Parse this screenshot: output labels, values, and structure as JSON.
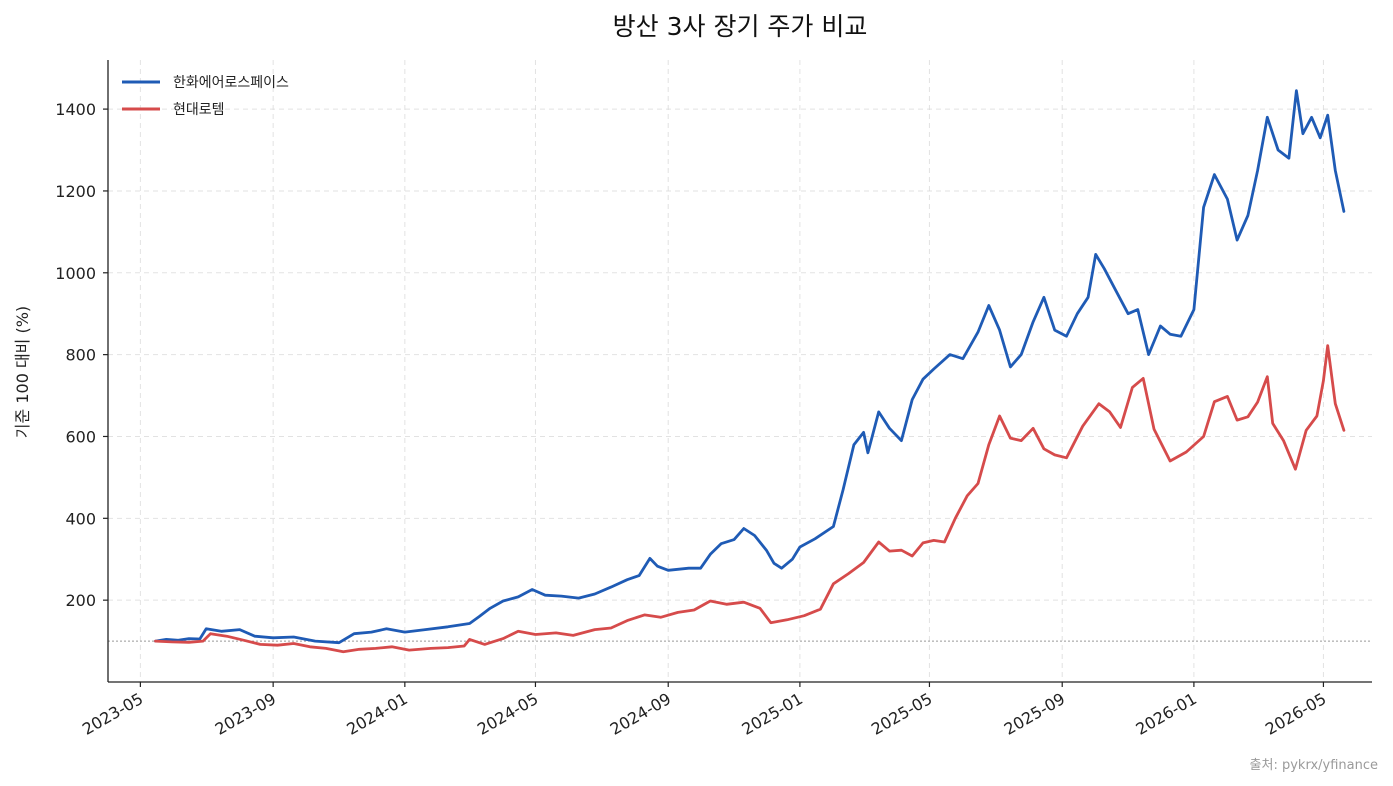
{
  "chart_data": {
    "type": "line",
    "title": "방산 3사 장기 주가 비교",
    "xlabel": "",
    "ylabel": "기준 100 대비 (%)",
    "source": "출처: pykrx/yfinance",
    "ylim": [
      0,
      1520
    ],
    "xlim": [
      "2023-04-01",
      "2026-06-15"
    ],
    "yticks": [
      200,
      400,
      600,
      800,
      1000,
      1200,
      1400
    ],
    "ytick_labels": [
      "200",
      "400",
      "600",
      "800",
      "1000",
      "1200",
      "1400"
    ],
    "xticks": [
      "2023-05-01",
      "2023-09-01",
      "2024-01-01",
      "2024-05-01",
      "2024-09-01",
      "2025-01-01",
      "2025-05-01",
      "2025-09-01",
      "2026-01-01",
      "2026-05-01"
    ],
    "xtick_labels": [
      "2023-05",
      "2023-09",
      "2024-01",
      "2024-05",
      "2024-09",
      "2025-01",
      "2025-05",
      "2025-09",
      "2026-01",
      "2026-05"
    ],
    "baseline": 100,
    "grid": true,
    "legend_position": "top-left",
    "series": [
      {
        "name": "한화에어로스페이스",
        "color": "#1f5bb5",
        "points": [
          [
            "2023-05-15",
            100
          ],
          [
            "2023-05-25",
            104
          ],
          [
            "2023-06-05",
            102
          ],
          [
            "2023-06-15",
            106
          ],
          [
            "2023-06-25",
            105
          ],
          [
            "2023-07-01",
            130
          ],
          [
            "2023-07-15",
            124
          ],
          [
            "2023-08-01",
            128
          ],
          [
            "2023-08-15",
            112
          ],
          [
            "2023-09-01",
            108
          ],
          [
            "2023-09-20",
            110
          ],
          [
            "2023-10-10",
            100
          ],
          [
            "2023-11-01",
            96
          ],
          [
            "2023-11-15",
            118
          ],
          [
            "2023-12-01",
            122
          ],
          [
            "2023-12-15",
            130
          ],
          [
            "2024-01-01",
            122
          ],
          [
            "2024-01-20",
            128
          ],
          [
            "2024-02-10",
            135
          ],
          [
            "2024-03-01",
            143
          ],
          [
            "2024-03-10",
            160
          ],
          [
            "2024-03-20",
            180
          ],
          [
            "2024-04-01",
            198
          ],
          [
            "2024-04-15",
            208
          ],
          [
            "2024-04-28",
            226
          ],
          [
            "2024-05-10",
            212
          ],
          [
            "2024-05-25",
            210
          ],
          [
            "2024-06-10",
            205
          ],
          [
            "2024-06-25",
            215
          ],
          [
            "2024-07-10",
            232
          ],
          [
            "2024-07-25",
            250
          ],
          [
            "2024-08-05",
            260
          ],
          [
            "2024-08-15",
            302
          ],
          [
            "2024-08-22",
            283
          ],
          [
            "2024-09-01",
            273
          ],
          [
            "2024-09-20",
            278
          ],
          [
            "2024-10-01",
            278
          ],
          [
            "2024-10-10",
            312
          ],
          [
            "2024-10-20",
            338
          ],
          [
            "2024-11-01",
            348
          ],
          [
            "2024-11-10",
            375
          ],
          [
            "2024-11-20",
            358
          ],
          [
            "2024-12-01",
            322
          ],
          [
            "2024-12-08",
            290
          ],
          [
            "2024-12-15",
            278
          ],
          [
            "2024-12-25",
            300
          ],
          [
            "2025-01-01",
            330
          ],
          [
            "2025-01-15",
            350
          ],
          [
            "2025-02-01",
            380
          ],
          [
            "2025-02-10",
            470
          ],
          [
            "2025-02-20",
            580
          ],
          [
            "2025-03-01",
            610
          ],
          [
            "2025-03-05",
            560
          ],
          [
            "2025-03-15",
            660
          ],
          [
            "2025-03-25",
            620
          ],
          [
            "2025-04-05",
            590
          ],
          [
            "2025-04-15",
            690
          ],
          [
            "2025-04-25",
            740
          ],
          [
            "2025-05-05",
            765
          ],
          [
            "2025-05-20",
            800
          ],
          [
            "2025-06-01",
            790
          ],
          [
            "2025-06-15",
            855
          ],
          [
            "2025-06-25",
            920
          ],
          [
            "2025-07-05",
            860
          ],
          [
            "2025-07-15",
            770
          ],
          [
            "2025-07-25",
            800
          ],
          [
            "2025-08-05",
            880
          ],
          [
            "2025-08-15",
            940
          ],
          [
            "2025-08-25",
            860
          ],
          [
            "2025-09-05",
            845
          ],
          [
            "2025-09-15",
            900
          ],
          [
            "2025-09-25",
            940
          ],
          [
            "2025-10-02",
            1045
          ],
          [
            "2025-10-10",
            1010
          ],
          [
            "2025-10-20",
            960
          ],
          [
            "2025-11-01",
            900
          ],
          [
            "2025-11-10",
            910
          ],
          [
            "2025-11-20",
            800
          ],
          [
            "2025-12-01",
            870
          ],
          [
            "2025-12-10",
            850
          ],
          [
            "2025-12-20",
            845
          ],
          [
            "2026-01-01",
            910
          ],
          [
            "2026-01-10",
            1160
          ],
          [
            "2026-01-20",
            1240
          ],
          [
            "2026-02-01",
            1180
          ],
          [
            "2026-02-10",
            1080
          ],
          [
            "2026-02-20",
            1140
          ],
          [
            "2026-03-01",
            1250
          ],
          [
            "2026-03-10",
            1380
          ],
          [
            "2026-03-20",
            1300
          ],
          [
            "2026-03-30",
            1280
          ],
          [
            "2026-04-06",
            1445
          ],
          [
            "2026-04-12",
            1340
          ],
          [
            "2026-04-20",
            1380
          ],
          [
            "2026-04-28",
            1330
          ],
          [
            "2026-05-05",
            1385
          ],
          [
            "2026-05-12",
            1250
          ],
          [
            "2026-05-20",
            1150
          ]
        ]
      },
      {
        "name": "현대로템",
        "color": "#d64b4b",
        "points": [
          [
            "2023-05-15",
            100
          ],
          [
            "2023-05-30",
            98
          ],
          [
            "2023-06-15",
            97
          ],
          [
            "2023-06-28",
            100
          ],
          [
            "2023-07-05",
            118
          ],
          [
            "2023-07-20",
            112
          ],
          [
            "2023-08-05",
            102
          ],
          [
            "2023-08-20",
            92
          ],
          [
            "2023-09-05",
            90
          ],
          [
            "2023-09-20",
            94
          ],
          [
            "2023-10-05",
            86
          ],
          [
            "2023-10-20",
            82
          ],
          [
            "2023-11-05",
            74
          ],
          [
            "2023-11-20",
            80
          ],
          [
            "2023-12-05",
            82
          ],
          [
            "2023-12-20",
            86
          ],
          [
            "2024-01-05",
            78
          ],
          [
            "2024-01-25",
            82
          ],
          [
            "2024-02-10",
            84
          ],
          [
            "2024-02-25",
            88
          ],
          [
            "2024-03-01",
            104
          ],
          [
            "2024-03-15",
            92
          ],
          [
            "2024-04-01",
            106
          ],
          [
            "2024-04-15",
            124
          ],
          [
            "2024-05-01",
            116
          ],
          [
            "2024-05-20",
            120
          ],
          [
            "2024-06-05",
            114
          ],
          [
            "2024-06-25",
            128
          ],
          [
            "2024-07-10",
            132
          ],
          [
            "2024-07-25",
            150
          ],
          [
            "2024-08-10",
            164
          ],
          [
            "2024-08-25",
            158
          ],
          [
            "2024-09-10",
            170
          ],
          [
            "2024-09-25",
            176
          ],
          [
            "2024-10-10",
            198
          ],
          [
            "2024-10-25",
            190
          ],
          [
            "2024-11-10",
            195
          ],
          [
            "2024-11-25",
            180
          ],
          [
            "2024-12-05",
            145
          ],
          [
            "2024-12-20",
            152
          ],
          [
            "2025-01-05",
            162
          ],
          [
            "2025-01-20",
            178
          ],
          [
            "2025-02-01",
            240
          ],
          [
            "2025-02-15",
            265
          ],
          [
            "2025-03-01",
            292
          ],
          [
            "2025-03-15",
            342
          ],
          [
            "2025-03-25",
            320
          ],
          [
            "2025-04-05",
            322
          ],
          [
            "2025-04-15",
            308
          ],
          [
            "2025-04-25",
            340
          ],
          [
            "2025-05-05",
            346
          ],
          [
            "2025-05-15",
            342
          ],
          [
            "2025-05-25",
            400
          ],
          [
            "2025-06-05",
            455
          ],
          [
            "2025-06-15",
            485
          ],
          [
            "2025-06-25",
            580
          ],
          [
            "2025-07-05",
            650
          ],
          [
            "2025-07-15",
            596
          ],
          [
            "2025-07-25",
            590
          ],
          [
            "2025-08-05",
            620
          ],
          [
            "2025-08-15",
            570
          ],
          [
            "2025-08-25",
            555
          ],
          [
            "2025-09-05",
            548
          ],
          [
            "2025-09-20",
            625
          ],
          [
            "2025-10-05",
            680
          ],
          [
            "2025-10-15",
            660
          ],
          [
            "2025-10-25",
            622
          ],
          [
            "2025-11-05",
            720
          ],
          [
            "2025-11-15",
            742
          ],
          [
            "2025-11-25",
            618
          ],
          [
            "2025-12-10",
            540
          ],
          [
            "2025-12-25",
            562
          ],
          [
            "2026-01-10",
            600
          ],
          [
            "2026-01-20",
            685
          ],
          [
            "2026-02-01",
            698
          ],
          [
            "2026-02-10",
            640
          ],
          [
            "2026-02-20",
            648
          ],
          [
            "2026-03-01",
            684
          ],
          [
            "2026-03-10",
            746
          ],
          [
            "2026-03-15",
            632
          ],
          [
            "2026-03-25",
            590
          ],
          [
            "2026-04-05",
            520
          ],
          [
            "2026-04-15",
            615
          ],
          [
            "2026-04-25",
            650
          ],
          [
            "2026-05-01",
            736
          ],
          [
            "2026-05-05",
            822
          ],
          [
            "2026-05-12",
            680
          ],
          [
            "2026-05-20",
            615
          ]
        ]
      }
    ]
  }
}
